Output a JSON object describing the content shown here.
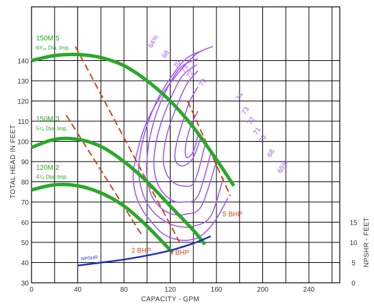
{
  "chart_data": {
    "type": "line",
    "xlabel": "CAPACITY - GPM",
    "ylabel": "TOTAL HEAD IN FEET",
    "y2label": "NPSHR - FEET",
    "xlim": [
      0,
      260
    ],
    "ylim": [
      30,
      150
    ],
    "y2lim": [
      0,
      35
    ],
    "x_ticks": [
      0,
      40,
      80,
      120,
      160,
      200,
      240
    ],
    "y_ticks": [
      30,
      40,
      50,
      60,
      70,
      80,
      90,
      100,
      110,
      120,
      130,
      140
    ],
    "y2_ticks": [
      0,
      5,
      10,
      15
    ],
    "grid": true,
    "head_curves": [
      {
        "model": "150M-5",
        "impeller": "6⁹⁄₁₆ Dia. Imp.",
        "color": "#2aa82a",
        "x": [
          0,
          20,
          40,
          60,
          80,
          100,
          120,
          140,
          160,
          175
        ],
        "y": [
          140,
          142.5,
          143,
          141.5,
          137.5,
          130,
          120,
          107,
          91,
          78
        ]
      },
      {
        "model": "150M-3",
        "impeller": "5⁷⁄₈ Dia. Imp.",
        "color": "#2aa82a",
        "x": [
          0,
          20,
          40,
          60,
          80,
          100,
          120,
          140,
          150
        ],
        "y": [
          97,
          101,
          101,
          97.5,
          90,
          80,
          68,
          56,
          49
        ]
      },
      {
        "model": "120M-2",
        "impeller": "4⁷⁄₈ Dia. Imp.",
        "color": "#2aa82a",
        "x": [
          0,
          20,
          40,
          60,
          80,
          100,
          122
        ],
        "y": [
          76,
          78.5,
          78,
          74.5,
          68,
          58,
          45
        ]
      }
    ],
    "bhp_lines": [
      {
        "label": "2 BHP",
        "color": "#cc4a1c",
        "x": [
          30,
          95
        ],
        "y": [
          113,
          54
        ]
      },
      {
        "label": "3 BHP",
        "color": "#cc4a1c",
        "x": [
          38,
          130
        ],
        "y": [
          147,
          48
        ]
      },
      {
        "label": "5 BHP",
        "color": "#cc4a1c",
        "x": [
          135,
          172
        ],
        "y": [
          120,
          73
        ]
      }
    ],
    "efficiency_contours": [
      {
        "label": "64%",
        "x": [
          157,
          140,
          115,
          100,
          92,
          88,
          90,
          96,
          104,
          112,
          122,
          134,
          146,
          158,
          170
        ],
        "y": [
          147,
          142,
          125,
          110,
          96,
          84,
          74,
          66,
          60,
          55,
          52,
          51,
          53,
          60,
          72
        ]
      },
      {
        "label": "68",
        "x": [
          148,
          132,
          112,
          100,
          94,
          93,
          97,
          104,
          114,
          126,
          140,
          155,
          166
        ],
        "y": [
          145,
          140,
          124,
          108,
          94,
          83,
          73,
          66,
          61,
          58,
          58,
          63,
          82
        ]
      },
      {
        "label": "70",
        "x": [
          144,
          128,
          113,
          104,
          100,
          100,
          104,
          112,
          122,
          134,
          147,
          160
        ],
        "y": [
          141,
          136,
          121,
          106,
          92,
          82,
          73,
          67,
          64,
          64,
          68,
          90
        ]
      },
      {
        "label": "71",
        "x": [
          143,
          130,
          118,
          110,
          106,
          107,
          112,
          121,
          132,
          144,
          155
        ],
        "y": [
          138,
          132,
          118,
          105,
          92,
          83,
          76,
          71,
          70,
          73,
          94
        ]
      },
      {
        "label": "72",
        "x": [
          144,
          134,
          124,
          117,
          114,
          116,
          122,
          131,
          141,
          150
        ],
        "y": [
          135,
          128,
          115,
          103,
          92,
          85,
          80,
          78,
          80,
          98
        ]
      },
      {
        "label": "73",
        "x": [
          144,
          137,
          131,
          126,
          124,
          126,
          132,
          140,
          147
        ],
        "y": [
          127,
          120,
          110,
          100,
          93,
          89,
          88,
          92,
          103
        ]
      },
      {
        "label": "74",
        "x": [
          144,
          138,
          134,
          133,
          135,
          140,
          144
        ],
        "y": [
          115,
          108,
          100,
          94,
          92,
          95,
          103
        ]
      }
    ],
    "efficiency_labels": [
      {
        "text": "64%",
        "x": 104,
        "y": 146
      },
      {
        "text": "68",
        "x": 116,
        "y": 141
      },
      {
        "text": "70",
        "x": 126,
        "y": 136
      },
      {
        "text": "71",
        "x": 132,
        "y": 134
      },
      {
        "text": "72",
        "x": 137,
        "y": 131
      },
      {
        "text": "73",
        "x": 148,
        "y": 127
      },
      {
        "text": "74",
        "x": 180,
        "y": 120
      },
      {
        "text": "73",
        "x": 185,
        "y": 113
      },
      {
        "text": "72",
        "x": 190,
        "y": 108
      },
      {
        "text": "71",
        "x": 195,
        "y": 103
      },
      {
        "text": "70",
        "x": 200,
        "y": 99
      },
      {
        "text": "68",
        "x": 207,
        "y": 92
      },
      {
        "text": "65%",
        "x": 216,
        "y": 84
      }
    ],
    "npshr": {
      "label": "NPSHR",
      "color": "#1f2fbf",
      "x": [
        40,
        60,
        80,
        100,
        120,
        140,
        155
      ],
      "y": [
        38.5,
        40,
        41.5,
        43.5,
        46,
        49.5,
        53
      ]
    }
  }
}
